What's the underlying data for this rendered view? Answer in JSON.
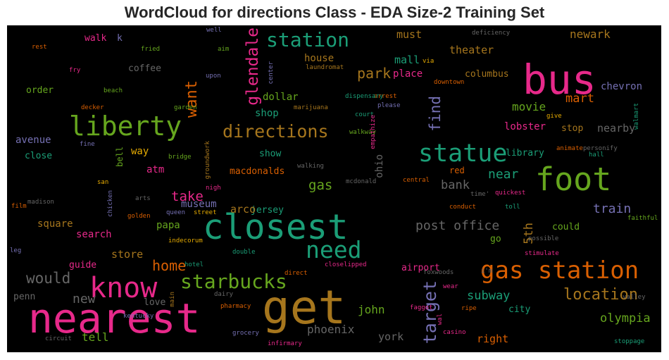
{
  "chart_data": {
    "type": "wordcloud",
    "title": "WordCloud for directions Class - EDA Size-2 Training Set",
    "background": "#000000",
    "palette": [
      "#e7298a",
      "#1b9e77",
      "#66a61e",
      "#d95f02",
      "#7570b3",
      "#a6761d",
      "#e6ab02",
      "#666666"
    ],
    "words": [
      {
        "text": "get",
        "color": "#a6761d"
      },
      {
        "text": "nearest",
        "color": "#e7298a"
      },
      {
        "text": "closest",
        "color": "#1b9e77"
      },
      {
        "text": "bus",
        "color": "#e7298a"
      },
      {
        "text": "foot",
        "color": "#66a61e"
      },
      {
        "text": "gas station",
        "color": "#d95f02"
      },
      {
        "text": "know",
        "color": "#e7298a"
      },
      {
        "text": "liberty",
        "color": "#66a61e"
      },
      {
        "text": "statue",
        "color": "#1b9e77"
      },
      {
        "text": "need",
        "color": "#1b9e77"
      },
      {
        "text": "starbucks",
        "color": "#66a61e"
      },
      {
        "text": "directions",
        "color": "#a6761d"
      },
      {
        "text": "station",
        "color": "#1b9e77"
      },
      {
        "text": "location",
        "color": "#a6761d"
      },
      {
        "text": "post office",
        "color": "#666666"
      },
      {
        "text": "glendale",
        "color": "#e7298a"
      },
      {
        "text": "target",
        "color": "#7570b3"
      },
      {
        "text": "home",
        "color": "#d95f02"
      },
      {
        "text": "would",
        "color": "#666666"
      },
      {
        "text": "want",
        "color": "#d95f02"
      },
      {
        "text": "take",
        "color": "#e7298a"
      },
      {
        "text": "olympia",
        "color": "#66a61e"
      },
      {
        "text": "phoenix",
        "color": "#666666"
      },
      {
        "text": "train",
        "color": "#7570b3"
      },
      {
        "text": "subway",
        "color": "#1b9e77"
      },
      {
        "text": "park",
        "color": "#a6761d"
      },
      {
        "text": "find",
        "color": "#7570b3"
      },
      {
        "text": "new",
        "color": "#666666"
      },
      {
        "text": "john",
        "color": "#66a61e"
      },
      {
        "text": "gas",
        "color": "#66a61e"
      },
      {
        "text": "near",
        "color": "#1b9e77"
      },
      {
        "text": "bank",
        "color": "#666666"
      },
      {
        "text": "mart",
        "color": "#d95f02"
      },
      {
        "text": "movie",
        "color": "#66a61e"
      },
      {
        "text": "nearby",
        "color": "#666666"
      },
      {
        "text": "chevron",
        "color": "#7570b3"
      },
      {
        "text": "newark",
        "color": "#a6761d"
      },
      {
        "text": "theater",
        "color": "#a6761d"
      },
      {
        "text": "must",
        "color": "#a6761d"
      },
      {
        "text": "mall",
        "color": "#1b9e77"
      },
      {
        "text": "house",
        "color": "#a6761d"
      },
      {
        "text": "place",
        "color": "#e7298a"
      },
      {
        "text": "columbus",
        "color": "#a6761d"
      },
      {
        "text": "dollar",
        "color": "#66a61e"
      },
      {
        "text": "shop",
        "color": "#1b9e77"
      },
      {
        "text": "lobster",
        "color": "#e7298a"
      },
      {
        "text": "stop",
        "color": "#a6761d"
      },
      {
        "text": "library",
        "color": "#1b9e77"
      },
      {
        "text": "red",
        "color": "#d95f02"
      },
      {
        "text": "5th",
        "color": "#a6761d"
      },
      {
        "text": "could",
        "color": "#66a61e"
      },
      {
        "text": "go",
        "color": "#66a61e"
      },
      {
        "text": "airport",
        "color": "#e7298a"
      },
      {
        "text": "right",
        "color": "#d95f02"
      },
      {
        "text": "york",
        "color": "#666666"
      },
      {
        "text": "city",
        "color": "#1b9e77"
      },
      {
        "text": "tell",
        "color": "#66a61e"
      },
      {
        "text": "guide",
        "color": "#e7298a"
      },
      {
        "text": "penn",
        "color": "#666666"
      },
      {
        "text": "love",
        "color": "#666666"
      },
      {
        "text": "store",
        "color": "#a6761d"
      },
      {
        "text": "search",
        "color": "#e7298a"
      },
      {
        "text": "square",
        "color": "#a6761d"
      },
      {
        "text": "papa",
        "color": "#66a61e"
      },
      {
        "text": "museum",
        "color": "#7570b3"
      },
      {
        "text": "jersey",
        "color": "#1b9e77"
      },
      {
        "text": "arco",
        "color": "#a6761d"
      },
      {
        "text": "macdonalds",
        "color": "#d95f02"
      },
      {
        "text": "show",
        "color": "#1b9e77"
      },
      {
        "text": "atm",
        "color": "#e7298a"
      },
      {
        "text": "way",
        "color": "#e6ab02"
      },
      {
        "text": "bell",
        "color": "#66a61e"
      },
      {
        "text": "avenue",
        "color": "#7570b3"
      },
      {
        "text": "close",
        "color": "#1b9e77"
      },
      {
        "text": "order",
        "color": "#66a61e"
      },
      {
        "text": "coffee",
        "color": "#666666"
      },
      {
        "text": "walk",
        "color": "#e7298a"
      },
      {
        "text": "k",
        "color": "#7570b3"
      },
      {
        "text": "ohio",
        "color": "#666666"
      },
      {
        "text": "well",
        "color": "#7570b3"
      },
      {
        "text": "rest",
        "color": "#d95f02"
      },
      {
        "text": "fried",
        "color": "#66a61e"
      },
      {
        "text": "aim",
        "color": "#66a61e"
      },
      {
        "text": "fry",
        "color": "#e7298a"
      },
      {
        "text": "upon",
        "color": "#7570b3"
      },
      {
        "text": "beach",
        "color": "#66a61e"
      },
      {
        "text": "decker",
        "color": "#d95f02"
      },
      {
        "text": "garden",
        "color": "#66a61e"
      },
      {
        "text": "center",
        "color": "#7570b3"
      },
      {
        "text": "laundromat",
        "color": "#a6761d"
      },
      {
        "text": "deficiency",
        "color": "#666666"
      },
      {
        "text": "via",
        "color": "#e6ab02"
      },
      {
        "text": "downtown",
        "color": "#d95f02"
      },
      {
        "text": "arrest",
        "color": "#d95f02"
      },
      {
        "text": "please",
        "color": "#7570b3"
      },
      {
        "text": "court",
        "color": "#1b9e77"
      },
      {
        "text": "dispensary",
        "color": "#1b9e77"
      },
      {
        "text": "marijuana",
        "color": "#a6761d"
      },
      {
        "text": "walkway",
        "color": "#66a61e"
      },
      {
        "text": "empathize",
        "color": "#e7298a"
      },
      {
        "text": "give",
        "color": "#e6ab02"
      },
      {
        "text": "walmart",
        "color": "#1b9e77"
      },
      {
        "text": "animate",
        "color": "#d95f02"
      },
      {
        "text": "personify",
        "color": "#666666"
      },
      {
        "text": "hall",
        "color": "#1b9e77"
      },
      {
        "text": "fine",
        "color": "#7570b3"
      },
      {
        "text": "bridge",
        "color": "#66a61e"
      },
      {
        "text": "groundwork",
        "color": "#a6761d"
      },
      {
        "text": "walking",
        "color": "#666666"
      },
      {
        "text": "mcdonald",
        "color": "#666666"
      },
      {
        "text": "central",
        "color": "#d95f02"
      },
      {
        "text": "time'",
        "color": "#666666"
      },
      {
        "text": "quickest",
        "color": "#e7298a"
      },
      {
        "text": "toll",
        "color": "#1b9e77"
      },
      {
        "text": "conduct",
        "color": "#d95f02"
      },
      {
        "text": "faithful",
        "color": "#66a61e"
      },
      {
        "text": "possible",
        "color": "#666666"
      },
      {
        "text": "stimulate",
        "color": "#e7298a"
      },
      {
        "text": "i'm",
        "color": "#666666"
      },
      {
        "text": "wear",
        "color": "#e7298a"
      },
      {
        "text": "foxwoods",
        "color": "#666666"
      },
      {
        "text": "faggot",
        "color": "#e7298a"
      },
      {
        "text": "wal",
        "color": "#e7298a"
      },
      {
        "text": "ripe",
        "color": "#d95f02"
      },
      {
        "text": "casino",
        "color": "#e7298a"
      },
      {
        "text": "stoppage",
        "color": "#1b9e77"
      },
      {
        "text": "valley",
        "color": "#666666"
      },
      {
        "text": "san",
        "color": "#e6ab02"
      },
      {
        "text": "madison",
        "color": "#666666"
      },
      {
        "text": "film",
        "color": "#d95f02"
      },
      {
        "text": "chicken",
        "color": "#7570b3"
      },
      {
        "text": "arts",
        "color": "#666666"
      },
      {
        "text": "golden",
        "color": "#d95f02"
      },
      {
        "text": "queen",
        "color": "#7570b3"
      },
      {
        "text": "street",
        "color": "#e6ab02"
      },
      {
        "text": "nigh",
        "color": "#e7298a"
      },
      {
        "text": "leg",
        "color": "#7570b3"
      },
      {
        "text": "indecorum",
        "color": "#e6ab02"
      },
      {
        "text": "hotel",
        "color": "#1b9e77"
      },
      {
        "text": "double",
        "color": "#1b9e77"
      },
      {
        "text": "closelipped",
        "color": "#e7298a"
      },
      {
        "text": "direct",
        "color": "#d95f02"
      },
      {
        "text": "main",
        "color": "#a6761d"
      },
      {
        "text": "dairy",
        "color": "#666666"
      },
      {
        "text": "pharmacy",
        "color": "#d95f02"
      },
      {
        "text": "grocery",
        "color": "#7570b3"
      },
      {
        "text": "infirmary",
        "color": "#e7298a"
      },
      {
        "text": "kentucky",
        "color": "#7570b3"
      },
      {
        "text": "circuit",
        "color": "#666666"
      }
    ]
  }
}
